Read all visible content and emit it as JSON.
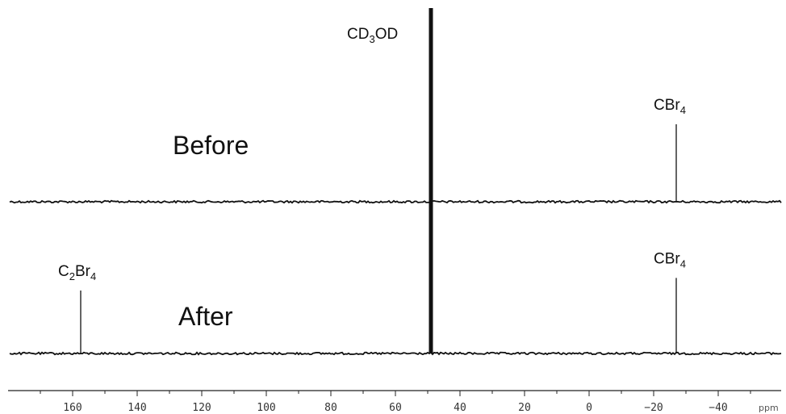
{
  "chart_data": {
    "type": "line",
    "title": "",
    "xlabel": "ppm",
    "ylabel": "",
    "x_axis_reversed": true,
    "xlim": [
      175,
      -60
    ],
    "ticks": [
      160,
      140,
      120,
      100,
      80,
      60,
      40,
      20,
      0,
      -20,
      -40
    ],
    "tick_labels": [
      "160",
      "140",
      "120",
      "100",
      "80",
      "60",
      "40",
      "20",
      "0",
      "−20",
      "−40"
    ],
    "grid": false,
    "legend": "none",
    "series": [
      {
        "name": "Before",
        "peaks": [
          {
            "ppm": 49.0,
            "label": "CD3OD",
            "label_main": "CD",
            "label_sub": "3",
            "label_tail": "OD",
            "intensity": 1.0,
            "offscale": true
          },
          {
            "ppm": -27.0,
            "label": "CBr4",
            "label_main": "CBr",
            "label_sub": "4",
            "label_tail": "",
            "intensity": 0.32,
            "offscale": false
          }
        ]
      },
      {
        "name": "After",
        "peaks": [
          {
            "ppm": 157.5,
            "label": "C2Br4",
            "label_main": "C",
            "label_sub": "2",
            "label_tail": "Br4",
            "intensity": 0.3,
            "offscale": false
          },
          {
            "ppm": 49.0,
            "label": "",
            "label_main": "",
            "label_sub": "",
            "label_tail": "",
            "intensity": 1.0,
            "offscale": true
          },
          {
            "ppm": -27.0,
            "label": "CBr4",
            "label_main": "CBr",
            "label_sub": "4",
            "label_tail": "",
            "intensity": 0.36,
            "offscale": false
          }
        ]
      }
    ],
    "colors": {
      "trace": "#111111",
      "axis": "#222222",
      "background": "#ffffff"
    }
  }
}
